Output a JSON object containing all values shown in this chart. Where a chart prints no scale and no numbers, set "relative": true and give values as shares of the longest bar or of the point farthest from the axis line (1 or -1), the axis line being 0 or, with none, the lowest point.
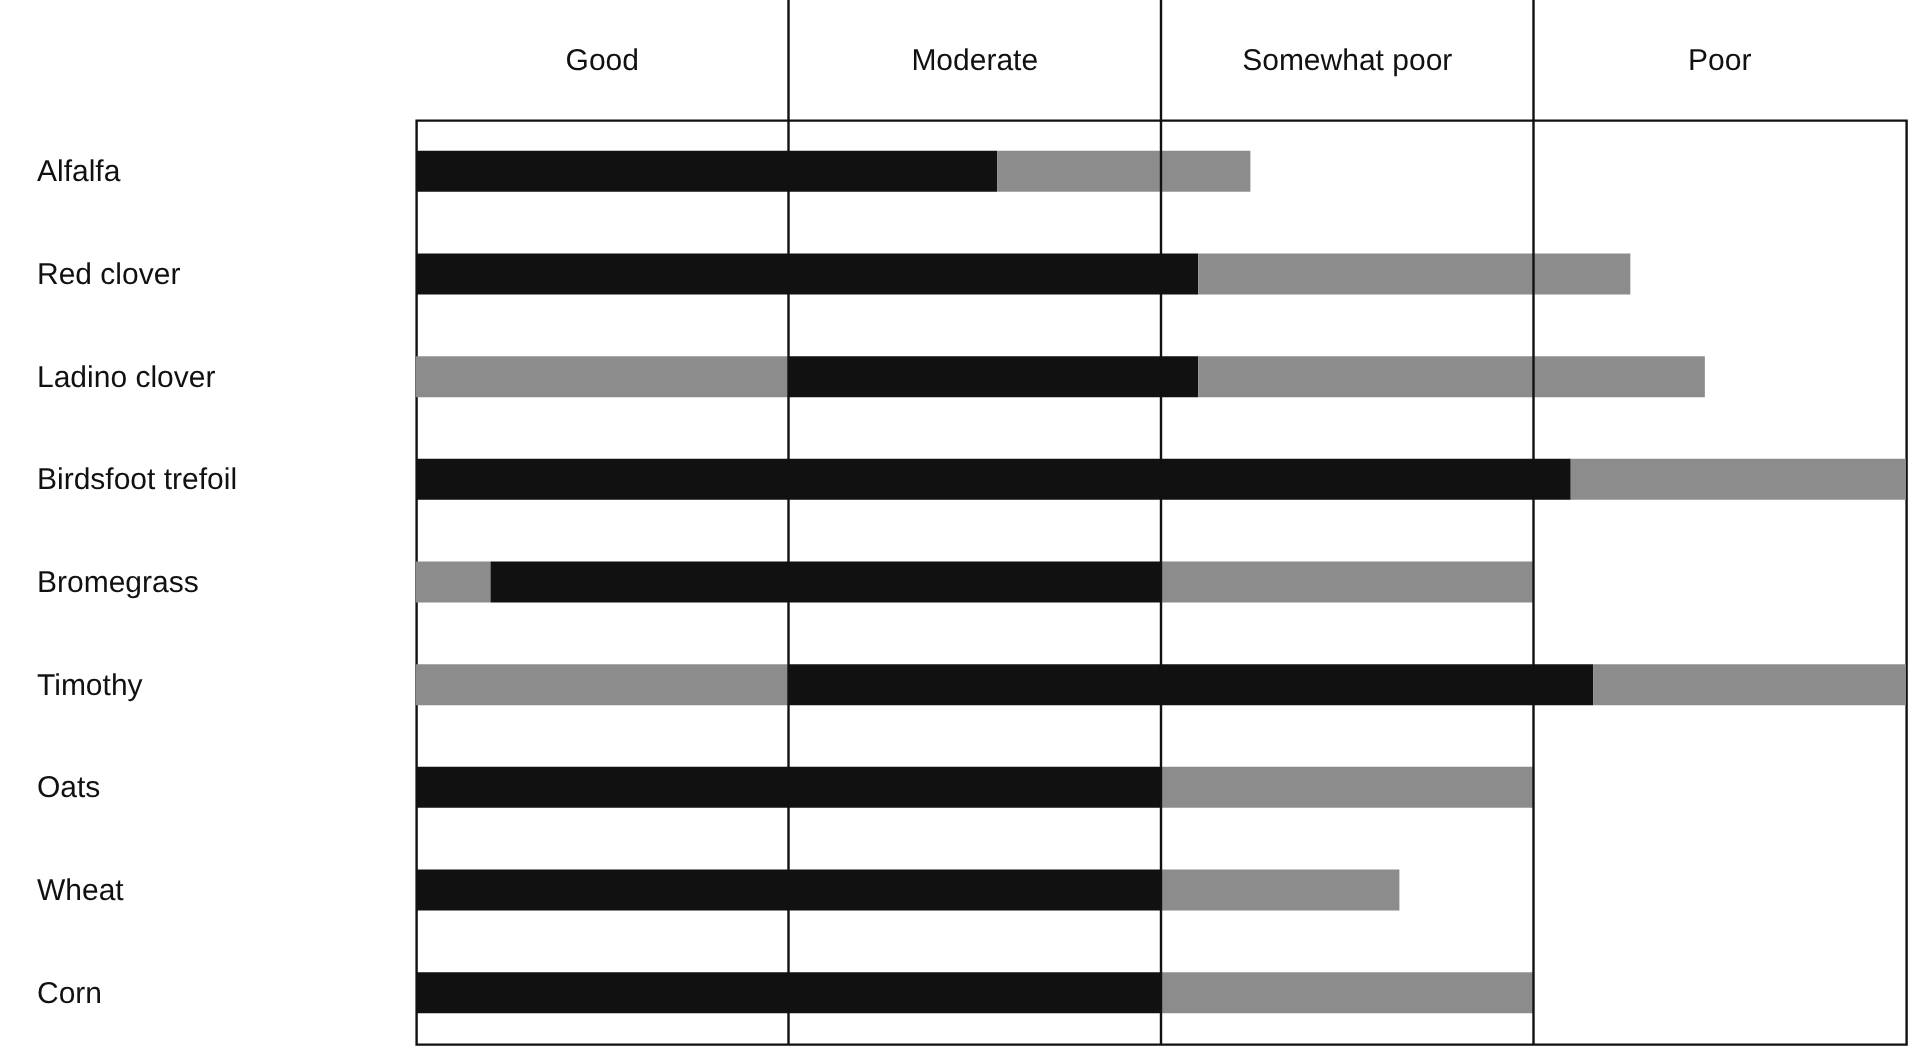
{
  "chart_data": {
    "type": "bar",
    "orientation": "horizontal",
    "stacked": true,
    "relative": true,
    "categories": [
      "Alfalfa",
      "Red clover",
      "Ladino clover",
      "Birdsfoot trefoil",
      "Bromegrass",
      "Timothy",
      "Oats",
      "Wheat",
      "Corn"
    ],
    "series": [
      {
        "color": "#8c8c8c",
        "values": [
          null,
          null,
          0.25,
          null,
          0.05,
          0.25,
          null,
          null,
          null
        ]
      },
      {
        "color": "#111111",
        "values": [
          0.39,
          0.525,
          0.275,
          0.775,
          0.45,
          0.54,
          0.5,
          0.5,
          0.5
        ]
      },
      {
        "color": "#8c8c8c",
        "values": [
          0.17,
          0.29,
          0.34,
          0.225,
          0.25,
          0.21,
          0.25,
          0.16,
          0.25
        ]
      }
    ],
    "ref_lines": [
      {
        "axis": "x",
        "value": 0.25
      },
      {
        "axis": "x",
        "value": 0.5
      },
      {
        "axis": "x",
        "value": 0.75
      }
    ],
    "annotations": [
      "Good",
      "Moderate",
      "Somewhat poor",
      "Poor"
    ]
  }
}
